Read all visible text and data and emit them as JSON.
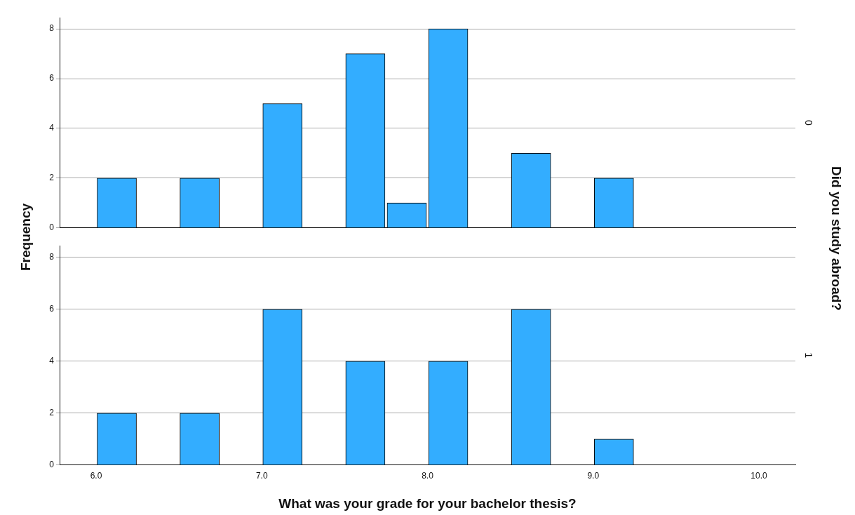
{
  "chart_data": [
    {
      "type": "histogram",
      "ylabel": "Frequency",
      "y2label": "Did you study abroad?",
      "annotations": [
        "0"
      ],
      "bins": [
        6.0,
        6.25,
        6.5,
        6.75,
        7.0,
        7.25,
        7.5,
        7.75,
        8.0,
        8.25,
        8.5,
        8.75,
        9.0,
        9.25,
        9.5,
        9.75,
        10.0
      ],
      "values": [
        2,
        0,
        2,
        0,
        5,
        0,
        7,
        1,
        8,
        0,
        3,
        0,
        2,
        0,
        0,
        0
      ],
      "color": "#33adff",
      "xlim": [
        5.78,
        10.22
      ],
      "ylim": [
        0,
        8.45
      ],
      "yticks": [
        0,
        2,
        4,
        6,
        8
      ],
      "grid": "y",
      "legend": false,
      "tick_labels": "y"
    },
    {
      "type": "histogram",
      "xlabel": "What was your grade for your bachelor thesis?",
      "annotations": [
        "1"
      ],
      "bins": [
        6.0,
        6.25,
        6.5,
        6.75,
        7.0,
        7.25,
        7.5,
        7.75,
        8.0,
        8.25,
        8.5,
        8.75,
        9.0,
        9.25,
        9.5,
        9.75,
        10.0
      ],
      "values": [
        2,
        0,
        2,
        0,
        6,
        0,
        4,
        0,
        4,
        0,
        6,
        0,
        1,
        0,
        0,
        0
      ],
      "color": "#33adff",
      "xlim": [
        5.78,
        10.22
      ],
      "xticks": [
        {
          "value": 6,
          "label": "6.0"
        },
        {
          "value": 7,
          "label": "7.0"
        },
        {
          "value": 8,
          "label": "8.0"
        },
        {
          "value": 9,
          "label": "9.0"
        },
        {
          "value": 10,
          "label": "10.0"
        }
      ],
      "ylim": [
        0,
        8.45
      ],
      "yticks": [
        0,
        2,
        4,
        6,
        8
      ],
      "grid": "y",
      "legend": false
    }
  ]
}
